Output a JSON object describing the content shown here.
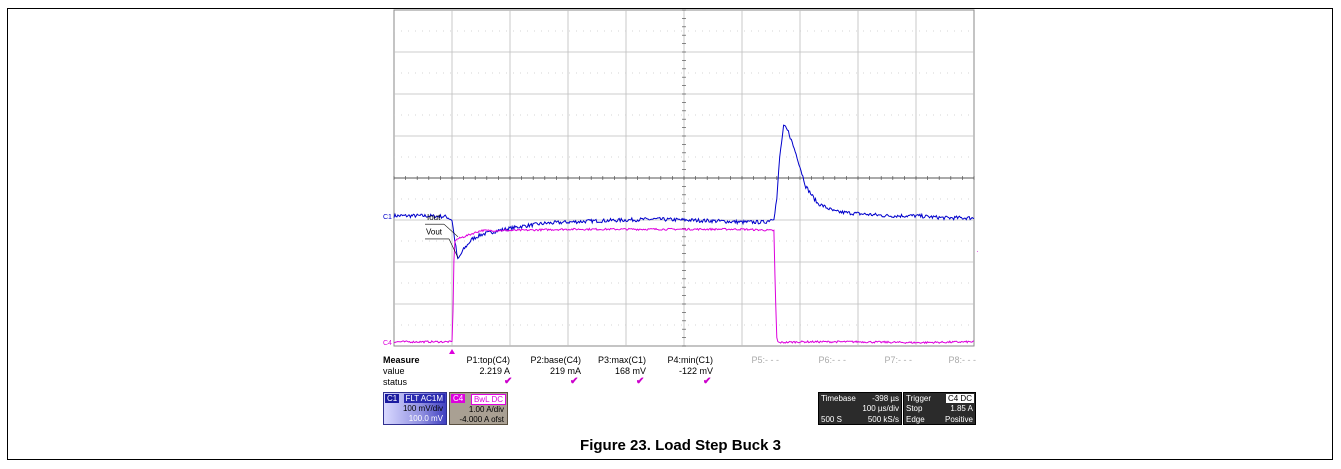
{
  "caption": "Figure 23. Load Step Buck 3",
  "colors": {
    "c1": "#0000cc",
    "c4": "#dd00dd",
    "grid": "#bdbdbd",
    "background": "#ffffff"
  },
  "chart_data": {
    "type": "line",
    "title": "",
    "grid": true,
    "x": {
      "divisions": 10,
      "per_division": "100 µs/div"
    },
    "y": {
      "divisions": 8
    },
    "series": [
      {
        "name": "C1",
        "label": "Vout",
        "x_div": [
          0.0,
          0.5,
          0.9,
          1.0,
          1.05,
          1.1,
          1.2,
          1.35,
          1.5,
          1.8,
          2.2,
          2.6,
          3.0,
          3.5,
          4.0,
          4.5,
          5.0,
          5.5,
          6.0,
          6.4,
          6.55,
          6.6,
          6.65,
          6.72,
          6.8,
          6.95,
          7.1,
          7.3,
          7.6,
          8.0,
          8.5,
          9.0,
          9.5,
          10.0
        ],
        "y_div": [
          -0.9,
          -0.9,
          -0.92,
          -1.0,
          -1.5,
          -1.95,
          -1.7,
          -1.45,
          -1.35,
          -1.25,
          -1.15,
          -1.08,
          -1.05,
          -1.02,
          -1.0,
          -0.98,
          -1.0,
          -1.02,
          -1.05,
          -1.05,
          -0.95,
          -0.5,
          0.5,
          1.25,
          1.1,
          0.5,
          -0.2,
          -0.6,
          -0.8,
          -0.85,
          -0.9,
          -0.9,
          -0.95,
          -0.95
        ]
      },
      {
        "name": "C4",
        "label": "Iout",
        "x_div": [
          0.0,
          1.0,
          1.02,
          1.04,
          1.1,
          1.3,
          1.5,
          2.0,
          3.0,
          4.0,
          5.0,
          6.0,
          6.55,
          6.57,
          6.6,
          6.62,
          7.0,
          8.0,
          9.0,
          10.0
        ],
        "y_div": [
          -3.9,
          -3.9,
          -3.0,
          -1.5,
          -1.45,
          -1.35,
          -1.25,
          -1.25,
          -1.22,
          -1.22,
          -1.22,
          -1.22,
          -1.25,
          -2.5,
          -3.8,
          -3.92,
          -3.9,
          -3.9,
          -3.92,
          -3.9
        ]
      }
    ],
    "markers": {
      "c1_ground": "C1",
      "c4_ground": "C4"
    }
  },
  "measure": {
    "header": "Measure",
    "row_labels": [
      "value",
      "status"
    ],
    "params": [
      {
        "name": "P1:top(C4)",
        "value": "2.219 A",
        "status": "✔"
      },
      {
        "name": "P2:base(C4)",
        "value": "219 mA",
        "status": "✔"
      },
      {
        "name": "P3:max(C1)",
        "value": "168 mV",
        "status": "✔"
      },
      {
        "name": "P4:min(C1)",
        "value": "-122 mV",
        "status": "✔"
      },
      {
        "name": "P5:- - -",
        "value": "",
        "status": ""
      },
      {
        "name": "P6:- - -",
        "value": "",
        "status": ""
      },
      {
        "name": "P7:- - -",
        "value": "",
        "status": ""
      },
      {
        "name": "P8:- - -",
        "value": "",
        "status": ""
      }
    ]
  },
  "channels": {
    "c1": {
      "id": "C1",
      "tags": "FLT AC1M",
      "scale": "100 mV/div",
      "offset": "100.0 mV"
    },
    "c4": {
      "id": "C4",
      "tags": "BwL DC",
      "scale": "1.00 A/div",
      "offset": "-4.000 A ofst"
    }
  },
  "timebase": {
    "label": "Timebase",
    "delay": "-398 µs",
    "scale": "100 µs/div",
    "samples": "500 S",
    "rate": "500 kS/s"
  },
  "trigger": {
    "label": "Trigger",
    "source": "C4 DC",
    "mode": "Stop",
    "level": "1.85 A",
    "type": "Edge",
    "slope": "Positive"
  }
}
